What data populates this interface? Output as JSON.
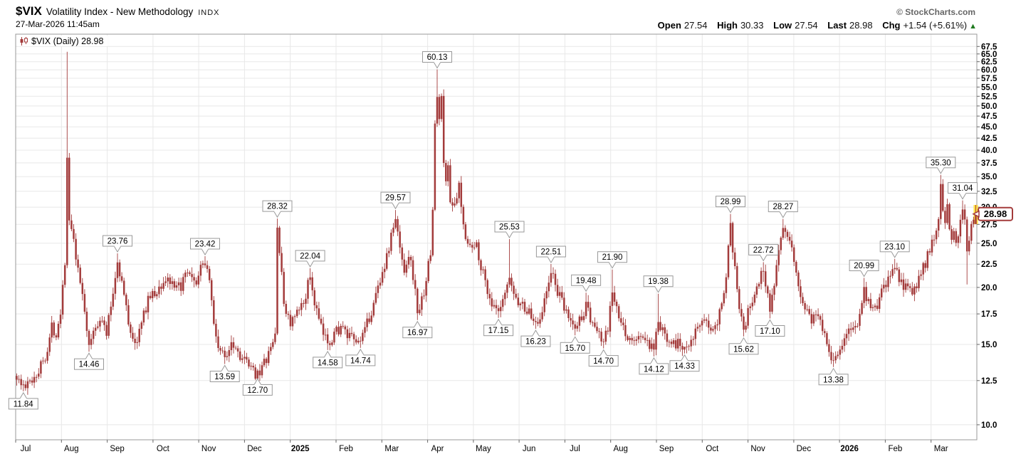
{
  "header": {
    "symbol": "$VIX",
    "title": "Volatility Index - New Methodology",
    "exchange": "INDX",
    "datetime": "27-Mar-2026 11:45am",
    "copyright": "© StockCharts.com",
    "quote": {
      "open_label": "Open",
      "open": "27.54",
      "high_label": "High",
      "high": "30.33",
      "low_label": "Low",
      "low": "27.54",
      "last_label": "Last",
      "last": "28.98",
      "chg_label": "Chg",
      "chg": "+1.54 (+5.61%)",
      "direction_symbol": "▲"
    }
  },
  "legend": {
    "label": "$VIX (Daily) 28.98"
  },
  "chart_data": {
    "type": "candlestick",
    "scale": "log",
    "title": "$VIX (Daily)",
    "ylim": [
      10,
      67.5
    ],
    "y_ticks": [
      10.0,
      12.5,
      15.0,
      17.5,
      20.0,
      22.5,
      25.0,
      27.5,
      30.0,
      32.5,
      35.0,
      37.5,
      40.0,
      42.5,
      45.0,
      47.5,
      50.0,
      52.5,
      55.0,
      57.5,
      60.0,
      62.5,
      65.0,
      67.5
    ],
    "x_labels": [
      {
        "label": "Jul",
        "bold": false
      },
      {
        "label": "Aug",
        "bold": false
      },
      {
        "label": "Sep",
        "bold": false
      },
      {
        "label": "Oct",
        "bold": false
      },
      {
        "label": "Nov",
        "bold": false
      },
      {
        "label": "Dec",
        "bold": false
      },
      {
        "label": "2025",
        "bold": true
      },
      {
        "label": "Feb",
        "bold": false
      },
      {
        "label": "Mar",
        "bold": false
      },
      {
        "label": "Apr",
        "bold": false
      },
      {
        "label": "May",
        "bold": false
      },
      {
        "label": "Jun",
        "bold": false
      },
      {
        "label": "Jul",
        "bold": false
      },
      {
        "label": "Aug",
        "bold": false
      },
      {
        "label": "Sep",
        "bold": false
      },
      {
        "label": "Oct",
        "bold": false
      },
      {
        "label": "Nov",
        "bold": false
      },
      {
        "label": "Dec",
        "bold": false
      },
      {
        "label": "2026",
        "bold": true
      },
      {
        "label": "Feb",
        "bold": false
      },
      {
        "label": "Mar",
        "bold": false
      }
    ],
    "days_per_month": 21,
    "total_days": 439,
    "waypoints": [
      [
        0,
        12.8
      ],
      [
        3,
        11.9
      ],
      [
        6,
        12.4
      ],
      [
        10,
        13.2
      ],
      [
        14,
        14.6
      ],
      [
        16,
        16.4
      ],
      [
        18,
        15.9
      ],
      [
        20,
        17.8
      ],
      [
        22,
        23.0
      ],
      [
        23,
        38.5
      ],
      [
        24,
        28.0
      ],
      [
        26,
        25.0
      ],
      [
        28,
        21.5
      ],
      [
        30,
        19.5
      ],
      [
        33,
        15.0
      ],
      [
        35,
        15.9
      ],
      [
        38,
        17.3
      ],
      [
        41,
        15.9
      ],
      [
        44,
        19.5
      ],
      [
        46,
        22.9
      ],
      [
        48,
        20.5
      ],
      [
        51,
        16.8
      ],
      [
        54,
        15.0
      ],
      [
        57,
        16.6
      ],
      [
        60,
        19.0
      ],
      [
        63,
        19.3
      ],
      [
        66,
        20.2
      ],
      [
        69,
        21.0
      ],
      [
        72,
        19.6
      ],
      [
        75,
        20.2
      ],
      [
        78,
        21.4
      ],
      [
        81,
        20.2
      ],
      [
        84,
        21.8
      ],
      [
        86,
        22.8
      ],
      [
        88,
        21.0
      ],
      [
        90,
        16.5
      ],
      [
        92,
        14.9
      ],
      [
        95,
        13.9
      ],
      [
        98,
        15.4
      ],
      [
        101,
        14.5
      ],
      [
        104,
        13.8
      ],
      [
        107,
        13.2
      ],
      [
        110,
        12.9
      ],
      [
        113,
        13.6
      ],
      [
        116,
        14.6
      ],
      [
        118,
        15.8
      ],
      [
        119,
        27.0
      ],
      [
        120,
        24.0
      ],
      [
        122,
        18.5
      ],
      [
        125,
        16.6
      ],
      [
        128,
        17.4
      ],
      [
        131,
        18.6
      ],
      [
        134,
        21.3
      ],
      [
        136,
        18.5
      ],
      [
        139,
        16.2
      ],
      [
        142,
        15.0
      ],
      [
        145,
        15.9
      ],
      [
        148,
        16.4
      ],
      [
        151,
        15.6
      ],
      [
        154,
        15.3
      ],
      [
        157,
        15.0
      ],
      [
        160,
        16.6
      ],
      [
        163,
        18.4
      ],
      [
        166,
        21.0
      ],
      [
        169,
        23.2
      ],
      [
        171,
        26.0
      ],
      [
        173,
        28.4
      ],
      [
        175,
        24.3
      ],
      [
        177,
        22.0
      ],
      [
        179,
        23.8
      ],
      [
        181,
        21.3
      ],
      [
        183,
        17.6
      ],
      [
        185,
        18.6
      ],
      [
        187,
        21.0
      ],
      [
        189,
        23.6
      ],
      [
        190,
        30.0
      ],
      [
        191,
        45.3
      ],
      [
        192,
        52.3
      ],
      [
        193,
        47.0
      ],
      [
        194,
        51.5
      ],
      [
        195,
        38.5
      ],
      [
        196,
        33.5
      ],
      [
        197,
        37.2
      ],
      [
        198,
        31.5
      ],
      [
        200,
        29.8
      ],
      [
        202,
        33.0
      ],
      [
        204,
        27.2
      ],
      [
        206,
        25.4
      ],
      [
        208,
        24.2
      ],
      [
        210,
        24.8
      ],
      [
        212,
        22.4
      ],
      [
        214,
        20.6
      ],
      [
        217,
        18.3
      ],
      [
        220,
        17.4
      ],
      [
        222,
        18.4
      ],
      [
        225,
        21.0
      ],
      [
        227,
        19.4
      ],
      [
        229,
        18.6
      ],
      [
        231,
        18.3
      ],
      [
        234,
        17.6
      ],
      [
        237,
        16.5
      ],
      [
        240,
        17.9
      ],
      [
        242,
        19.4
      ],
      [
        244,
        21.7
      ],
      [
        246,
        20.2
      ],
      [
        248,
        19.0
      ],
      [
        250,
        17.9
      ],
      [
        252,
        17.3
      ],
      [
        255,
        16.1
      ],
      [
        257,
        17.0
      ],
      [
        260,
        18.2
      ],
      [
        262,
        17.1
      ],
      [
        264,
        16.4
      ],
      [
        266,
        15.6
      ],
      [
        268,
        15.1
      ],
      [
        270,
        16.2
      ],
      [
        272,
        19.5
      ],
      [
        274,
        17.8
      ],
      [
        276,
        16.5
      ],
      [
        279,
        15.6
      ],
      [
        282,
        15.1
      ],
      [
        285,
        15.8
      ],
      [
        288,
        15.0
      ],
      [
        291,
        14.5
      ],
      [
        293,
        16.8
      ],
      [
        295,
        15.9
      ],
      [
        298,
        15.5
      ],
      [
        301,
        15.1
      ],
      [
        305,
        14.7
      ],
      [
        308,
        15.6
      ],
      [
        311,
        16.2
      ],
      [
        314,
        16.6
      ],
      [
        317,
        16.4
      ],
      [
        320,
        17.1
      ],
      [
        322,
        18.6
      ],
      [
        324,
        21.5
      ],
      [
        326,
        26.8
      ],
      [
        328,
        22.4
      ],
      [
        330,
        18.4
      ],
      [
        332,
        16.3
      ],
      [
        334,
        17.6
      ],
      [
        336,
        18.6
      ],
      [
        338,
        20.1
      ],
      [
        341,
        21.8
      ],
      [
        344,
        18.0
      ],
      [
        346,
        20.6
      ],
      [
        348,
        24.6
      ],
      [
        350,
        27.2
      ],
      [
        352,
        25.4
      ],
      [
        354,
        23.8
      ],
      [
        356,
        21.4
      ],
      [
        358,
        19.4
      ],
      [
        360,
        18.1
      ],
      [
        363,
        17.1
      ],
      [
        366,
        17.4
      ],
      [
        369,
        16.0
      ],
      [
        371,
        14.6
      ],
      [
        373,
        13.9
      ],
      [
        375,
        14.3
      ],
      [
        377,
        15.1
      ],
      [
        379,
        15.6
      ],
      [
        381,
        16.1
      ],
      [
        383,
        16.6
      ],
      [
        385,
        17.3
      ],
      [
        387,
        19.6
      ],
      [
        389,
        18.4
      ],
      [
        391,
        17.9
      ],
      [
        393,
        18.3
      ],
      [
        395,
        19.4
      ],
      [
        397,
        20.4
      ],
      [
        399,
        21.0
      ],
      [
        401,
        22.4
      ],
      [
        403,
        20.9
      ],
      [
        405,
        19.9
      ],
      [
        407,
        20.4
      ],
      [
        409,
        19.6
      ],
      [
        411,
        20.1
      ],
      [
        413,
        21.4
      ],
      [
        415,
        22.6
      ],
      [
        417,
        24.1
      ],
      [
        419,
        25.6
      ],
      [
        421,
        29.0
      ],
      [
        422,
        33.6
      ],
      [
        423,
        30.2
      ],
      [
        424,
        28.4
      ],
      [
        425,
        29.6
      ],
      [
        426,
        27.4
      ],
      [
        427,
        26.1
      ],
      [
        428,
        27.4
      ],
      [
        429,
        25.2
      ],
      [
        430,
        26.6
      ],
      [
        431,
        28.1
      ],
      [
        432,
        30.2
      ],
      [
        433,
        28.4
      ],
      [
        434,
        24.0
      ],
      [
        435,
        25.6
      ],
      [
        436,
        26.9
      ],
      [
        437,
        27.4
      ],
      [
        438,
        28.98
      ]
    ],
    "annotations": [
      {
        "day": 3,
        "value": 11.84,
        "side": "below",
        "label": "11.84"
      },
      {
        "day": 23,
        "value": 65.73,
        "side": "above",
        "label": ""
      },
      {
        "day": 33,
        "value": 14.46,
        "side": "below",
        "label": "14.46"
      },
      {
        "day": 46,
        "value": 23.76,
        "side": "above",
        "label": "23.76"
      },
      {
        "day": 54,
        "value": 14.6,
        "side": "below",
        "label": ""
      },
      {
        "day": 86,
        "value": 23.42,
        "side": "above",
        "label": "23.42"
      },
      {
        "day": 95,
        "value": 13.59,
        "side": "below",
        "label": "13.59"
      },
      {
        "day": 110,
        "value": 12.7,
        "side": "below",
        "label": "12.70"
      },
      {
        "day": 119,
        "value": 28.32,
        "side": "above",
        "label": "28.32"
      },
      {
        "day": 134,
        "value": 22.04,
        "side": "above",
        "label": "22.04"
      },
      {
        "day": 142,
        "value": 14.58,
        "side": "below",
        "label": "14.58"
      },
      {
        "day": 157,
        "value": 14.74,
        "side": "below",
        "label": "14.74"
      },
      {
        "day": 173,
        "value": 29.57,
        "side": "above",
        "label": "29.57"
      },
      {
        "day": 183,
        "value": 16.97,
        "side": "below",
        "label": "16.97"
      },
      {
        "day": 192,
        "value": 60.13,
        "side": "above",
        "label": "60.13"
      },
      {
        "day": 220,
        "value": 17.15,
        "side": "below",
        "label": "17.15"
      },
      {
        "day": 225,
        "value": 25.53,
        "side": "above",
        "label": "25.53"
      },
      {
        "day": 237,
        "value": 16.23,
        "side": "below",
        "label": "16.23"
      },
      {
        "day": 244,
        "value": 22.51,
        "side": "above",
        "label": "22.51"
      },
      {
        "day": 255,
        "value": 15.7,
        "side": "below",
        "label": "15.70"
      },
      {
        "day": 260,
        "value": 19.48,
        "side": "above",
        "label": "19.48"
      },
      {
        "day": 268,
        "value": 14.7,
        "side": "below",
        "label": "14.70"
      },
      {
        "day": 272,
        "value": 21.9,
        "side": "above",
        "label": "21.90"
      },
      {
        "day": 291,
        "value": 14.12,
        "side": "below",
        "label": "14.12"
      },
      {
        "day": 293,
        "value": 19.38,
        "side": "above",
        "label": "19.38"
      },
      {
        "day": 305,
        "value": 14.33,
        "side": "below",
        "label": "14.33"
      },
      {
        "day": 326,
        "value": 28.99,
        "side": "above",
        "label": "28.99"
      },
      {
        "day": 332,
        "value": 15.62,
        "side": "below",
        "label": "15.62"
      },
      {
        "day": 341,
        "value": 22.72,
        "side": "above",
        "label": "22.72"
      },
      {
        "day": 344,
        "value": 17.1,
        "side": "below",
        "label": "17.10"
      },
      {
        "day": 350,
        "value": 28.27,
        "side": "above",
        "label": "28.27"
      },
      {
        "day": 373,
        "value": 13.38,
        "side": "below",
        "label": "13.38"
      },
      {
        "day": 387,
        "value": 20.99,
        "side": "above",
        "label": "20.99"
      },
      {
        "day": 401,
        "value": 23.1,
        "side": "above",
        "label": "23.10"
      },
      {
        "day": 422,
        "value": 35.3,
        "side": "above",
        "label": "35.30"
      },
      {
        "day": 432,
        "value": 31.04,
        "side": "above",
        "label": "31.04"
      },
      {
        "day": 434,
        "value": 20.3,
        "side": "below",
        "label": ""
      }
    ],
    "last_bar": {
      "open": 27.54,
      "high": 30.33,
      "low": 27.54,
      "close": 28.98,
      "label": "28.98"
    },
    "colors": {
      "candle": "#A33B3B",
      "grid": "#E8E8E8",
      "border": "#999999",
      "highlight": "#FFDD44",
      "callout_border": "#999999",
      "last_box_border": "#A33B3B",
      "up_arrow": "#1f7a1f"
    }
  }
}
